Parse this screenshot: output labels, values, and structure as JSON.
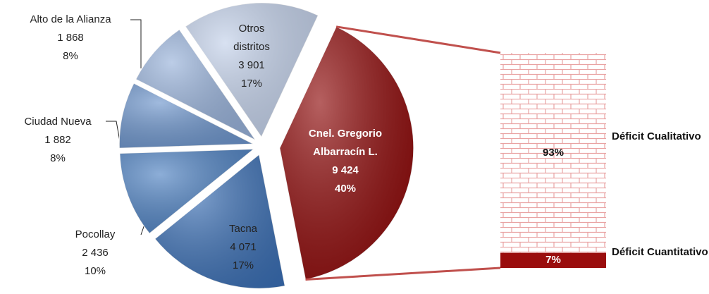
{
  "chart_data": {
    "type": "pie",
    "categories": [
      "Cnel. Gregorio Albarracín L.",
      "Tacna",
      "Pocollay",
      "Ciudad Nueva",
      "Alto de la Alianza",
      "Otros distritos"
    ],
    "values": [
      9424,
      4071,
      2436,
      1882,
      1868,
      3901
    ],
    "value_labels": [
      "9 424",
      "4 071",
      "2 436",
      "1 882",
      "1 868",
      "3 901"
    ],
    "percentages": [
      40,
      17,
      10,
      8,
      8,
      17
    ],
    "percentage_labels": [
      "40%",
      "17%",
      "10%",
      "8%",
      "8%",
      "17%"
    ],
    "colors": [
      "#8e0a0a",
      "#3b6fb4",
      "#4f82c2",
      "#6d95cc",
      "#98b2da",
      "#c3d1ea"
    ],
    "breakdown": {
      "type": "bar",
      "categories": [
        "Déficit Cualitativo",
        "Déficit Cuantitativo"
      ],
      "values": [
        93,
        7
      ],
      "value_labels": [
        "93%",
        "7%"
      ],
      "colors": [
        "#e9a3a3",
        "#9a0d0d"
      ]
    }
  }
}
